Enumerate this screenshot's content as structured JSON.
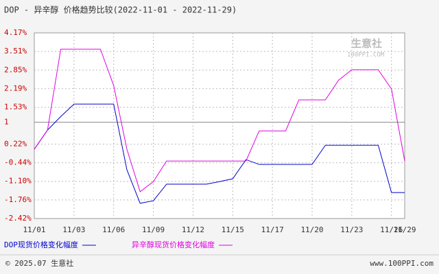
{
  "chart_data": {
    "type": "line",
    "title": "DOP - 异辛醇 价格趋势比较(2022-11-01 - 2022-11-29)",
    "categories": [
      "11/01",
      null,
      null,
      "11/03",
      null,
      null,
      "11/06",
      null,
      null,
      "11/09",
      null,
      null,
      "11/12",
      null,
      null,
      "11/15",
      null,
      null,
      "11/17",
      null,
      null,
      "11/20",
      null,
      null,
      "11/23",
      null,
      null,
      "11/26",
      "11/29"
    ],
    "series": [
      {
        "name": "DOP现货价格变化幅度",
        "color": "#0000cc",
        "values": [
          0.04,
          0.72,
          1.2,
          1.64,
          1.64,
          1.64,
          1.64,
          -0.69,
          -1.88,
          -1.79,
          -1.2,
          -1.2,
          -1.2,
          -1.2,
          -1.11,
          -1.01,
          -0.33,
          -0.5,
          -0.5,
          -0.5,
          -0.5,
          -0.5,
          0.18,
          0.18,
          0.18,
          0.18,
          0.18,
          -1.5,
          -1.5
        ]
      },
      {
        "name": "异辛醇现货价格变化幅度",
        "color": "#e000e0",
        "values": [
          0.04,
          0.72,
          3.59,
          3.59,
          3.59,
          3.59,
          2.3,
          0.04,
          -1.47,
          -1.11,
          -0.38,
          -0.38,
          -0.38,
          -0.38,
          -0.38,
          -0.38,
          -0.38,
          0.69,
          0.69,
          0.69,
          1.79,
          1.79,
          1.79,
          2.49,
          2.86,
          2.86,
          2.86,
          2.18,
          -0.38
        ]
      }
    ],
    "ylim": [
      -2.42,
      4.17
    ],
    "yticks": [
      {
        "value": 4.17,
        "label": "4.17%"
      },
      {
        "value": 3.51,
        "label": "3.51%"
      },
      {
        "value": 2.85,
        "label": "2.85%"
      },
      {
        "value": 2.19,
        "label": "2.19%"
      },
      {
        "value": 1.53,
        "label": "1.53%"
      },
      1,
      {
        "value": 0.22,
        "label": "0.22%"
      },
      {
        "value": -0.44,
        "label": "-0.44%"
      },
      {
        "value": -1.1,
        "label": "-1.10%"
      },
      {
        "value": -1.76,
        "label": "-1.76%"
      },
      {
        "value": -2.42,
        "label": "-2.42%"
      }
    ],
    "grid": true,
    "watermark": {
      "name": "生意社",
      "site": "100PPI.COM"
    },
    "footer": {
      "left": "© 2025.07 生意社",
      "right": "www.100PPI.com"
    }
  }
}
